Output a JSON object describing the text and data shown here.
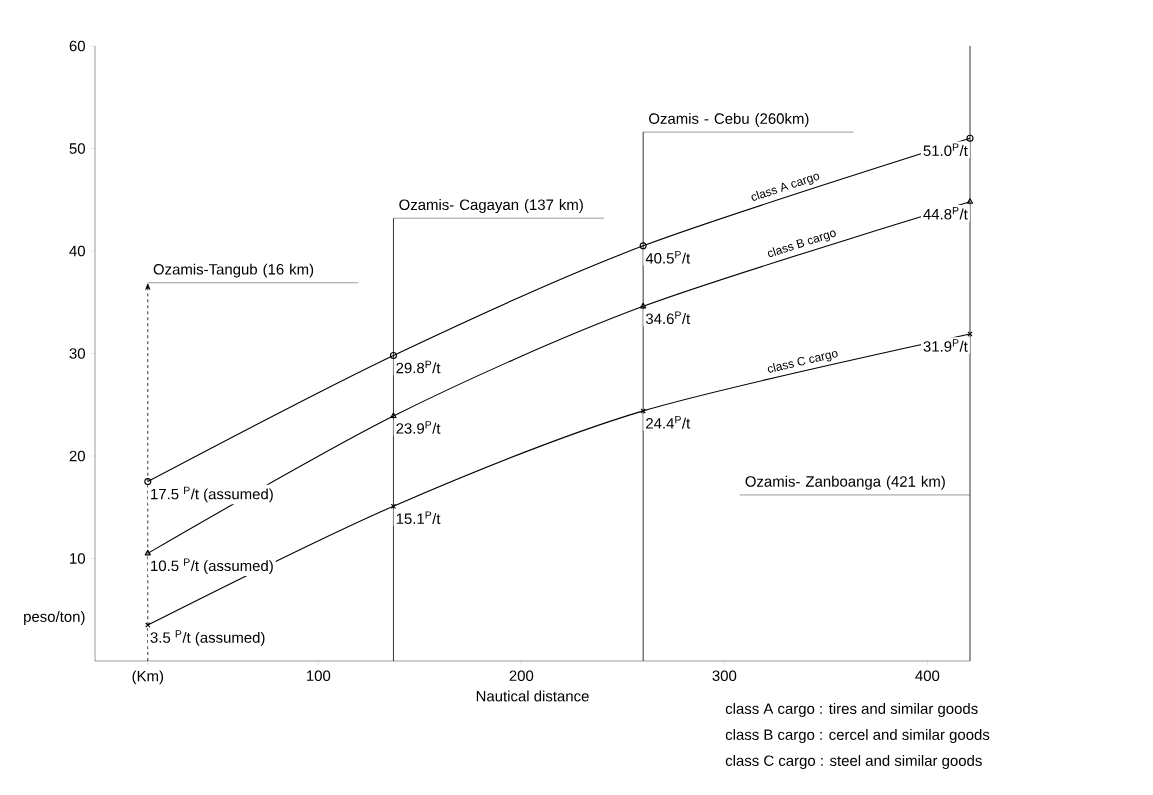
{
  "chart_data": {
    "type": "line",
    "xlabel": "Nautical distance",
    "ylabel": "peso/ton)",
    "x": [
      16,
      137,
      260,
      421
    ],
    "series": [
      {
        "name": "class A cargo",
        "color": "#000000",
        "marker": "circle",
        "values": [
          17.5,
          29.8,
          40.5,
          51.0
        ],
        "value_labels": [
          "17.5 $^{P}$/t (assumed)",
          "29.8$^{P}$/t",
          "40.5$^{P}$/t",
          "51.0$^{P}$/t"
        ]
      },
      {
        "name": "class B cargo",
        "color": "#000000",
        "marker": "triangle",
        "values": [
          10.5,
          23.9,
          34.6,
          44.8
        ],
        "value_labels": [
          "10.5 $^{P}$/t (assumed)",
          "23.9$^{P}$/t",
          "34.6$^{P}$/t",
          "44.8$^{P}$/t"
        ]
      },
      {
        "name": "class C cargo",
        "color": "#000000",
        "marker": "cross",
        "values": [
          3.5,
          15.1,
          24.4,
          31.9
        ],
        "value_labels": [
          "3.5 $^{P}$/t (assumed)",
          "15.1$^{P}$/t",
          "24.4$^{P}$/t",
          "31.9$^{P}$/t"
        ]
      }
    ],
    "xlim": [
      -10,
      421
    ],
    "ylim": [
      0,
      60
    ],
    "xticks": [
      {
        "value": 16,
        "label": "(Km)"
      },
      100,
      200,
      300,
      400
    ],
    "yticks": [
      10,
      20,
      30,
      40,
      50,
      60
    ],
    "ref_lines": [
      {
        "axis": "x",
        "value": 16,
        "label": "Ozamis-Tangub (16 km)",
        "line_style": "dashed"
      },
      {
        "axis": "x",
        "value": 137,
        "label": "Ozamis- Cagayan (137 km)"
      },
      {
        "axis": "x",
        "value": 260,
        "label": "Ozamis - Cebu (260km)"
      },
      {
        "axis": "x",
        "value": 421,
        "label": "Ozamis- Zanboanga (421 km)"
      }
    ],
    "annotations": [
      "class A cargo : tires and similar goods",
      "class B cargo : cercel and similar goods",
      "class C cargo : steel and similar goods"
    ]
  }
}
